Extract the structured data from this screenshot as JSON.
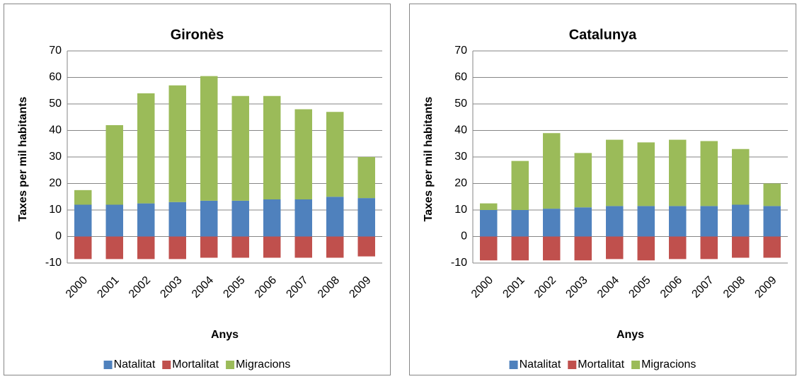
{
  "chart_data": [
    {
      "type": "bar",
      "stacked": true,
      "title": "Gironès",
      "x_label": "Anys",
      "y_label": "Taxes per mil habitants",
      "categories": [
        "2000",
        "2001",
        "2002",
        "2003",
        "2004",
        "2005",
        "2006",
        "2007",
        "2008",
        "2009"
      ],
      "series": [
        {
          "name": "Natalitat",
          "color": "#4f81bd",
          "values": [
            12,
            12,
            12.5,
            13,
            13.5,
            13.5,
            14,
            14,
            15,
            14.5
          ]
        },
        {
          "name": "Mortalitat",
          "color": "#c0504d",
          "values": [
            -8.5,
            -8.5,
            -8.5,
            -8.5,
            -8,
            -8,
            -8,
            -8,
            -8,
            -7.5
          ]
        },
        {
          "name": "Migracions",
          "color": "#9bbb59",
          "values": [
            5.5,
            30,
            41.5,
            44,
            47,
            39.5,
            39,
            34,
            32,
            15.5
          ]
        }
      ],
      "ylim": [
        -10,
        70
      ],
      "yticks": [
        -10,
        0,
        10,
        20,
        30,
        40,
        50,
        60,
        70
      ],
      "grid": true,
      "legend": "bottom"
    },
    {
      "type": "bar",
      "stacked": true,
      "title": "Catalunya",
      "x_label": "Anys",
      "y_label": "Taxes per mil habitants",
      "categories": [
        "2000",
        "2001",
        "2002",
        "2003",
        "2004",
        "2005",
        "2006",
        "2007",
        "2008",
        "2009"
      ],
      "series": [
        {
          "name": "Natalitat",
          "color": "#4f81bd",
          "values": [
            10,
            10,
            10.5,
            11,
            11.5,
            11.5,
            11.5,
            11.5,
            12,
            11.5
          ]
        },
        {
          "name": "Mortalitat",
          "color": "#c0504d",
          "values": [
            -9,
            -9,
            -9,
            -9,
            -8.5,
            -9,
            -8.5,
            -8.5,
            -8,
            -8
          ]
        },
        {
          "name": "Migracions",
          "color": "#9bbb59",
          "values": [
            2.5,
            18.5,
            28.5,
            20.5,
            25,
            24,
            25,
            24.5,
            21,
            8.5
          ]
        }
      ],
      "ylim": [
        -10,
        70
      ],
      "yticks": [
        -10,
        0,
        10,
        20,
        30,
        40,
        50,
        60,
        70
      ],
      "grid": true,
      "legend": "bottom"
    }
  ]
}
